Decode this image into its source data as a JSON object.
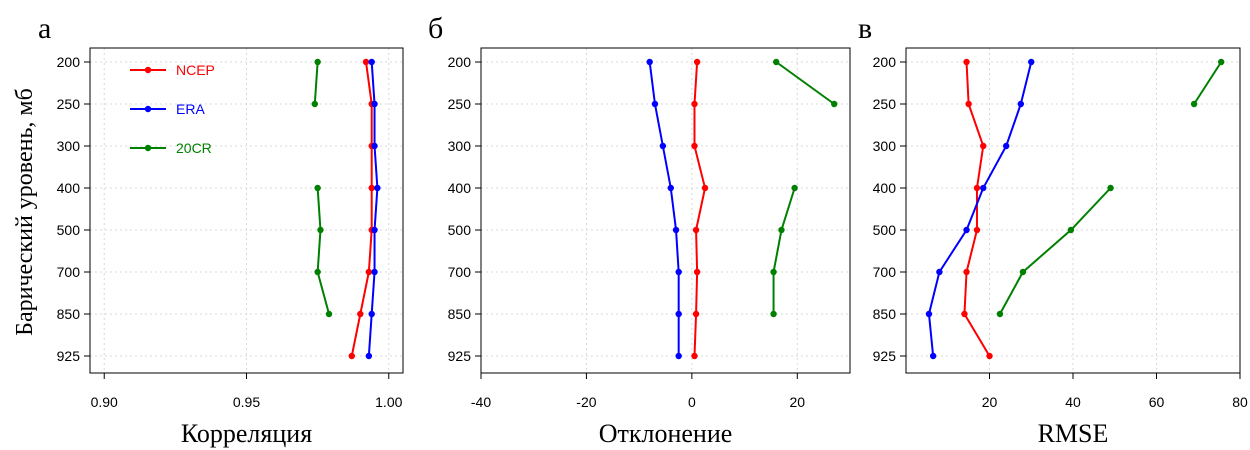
{
  "figure": {
    "ylabel": "Барический уровень, мб",
    "levels": [
      "200",
      "250",
      "300",
      "400",
      "500",
      "700",
      "850",
      "925"
    ]
  },
  "chart_data": [
    {
      "type": "line",
      "panel_label": "а",
      "xlabel": "Корреляция",
      "ylabel": "Барический уровень, мб",
      "xlim": [
        0.895,
        1.005
      ],
      "xticks": [
        "0.90",
        "0.95",
        "1.00"
      ],
      "xtick_values": [
        0.9,
        0.95,
        1.0
      ],
      "categories": [
        "200",
        "250",
        "300",
        "400",
        "500",
        "700",
        "850",
        "925"
      ],
      "grid": true,
      "legend": "top-left",
      "series": [
        {
          "name": "NCEP",
          "color": "#ff0000",
          "values": [
            0.992,
            0.994,
            0.994,
            0.994,
            0.994,
            0.993,
            0.99,
            0.987
          ]
        },
        {
          "name": "ERA",
          "color": "#0000ff",
          "values": [
            0.994,
            0.995,
            0.995,
            0.996,
            0.995,
            0.995,
            0.994,
            0.993
          ]
        },
        {
          "name": "20CR",
          "color": "#008000",
          "values": [
            0.975,
            0.974,
            null,
            0.975,
            0.976,
            0.975,
            0.979,
            null
          ]
        }
      ]
    },
    {
      "type": "line",
      "panel_label": "б",
      "xlabel": "Отклонение",
      "xlim": [
        -40,
        30
      ],
      "xticks": [
        "-40",
        "-20",
        "0",
        "20"
      ],
      "xtick_values": [
        -40,
        -20,
        0,
        20
      ],
      "categories": [
        "200",
        "250",
        "300",
        "400",
        "500",
        "700",
        "850",
        "925"
      ],
      "grid": true,
      "series": [
        {
          "name": "NCEP",
          "color": "#ff0000",
          "values": [
            1,
            0.5,
            0.5,
            2.5,
            0.8,
            1,
            0.8,
            0.5
          ]
        },
        {
          "name": "ERA",
          "color": "#0000ff",
          "values": [
            -8,
            -7,
            -5.5,
            -4,
            -3,
            -2.5,
            -2.5,
            -2.5
          ]
        },
        {
          "name": "20CR",
          "color": "#008000",
          "values": [
            16,
            27,
            null,
            19.5,
            17,
            15.5,
            15.5,
            null
          ]
        }
      ]
    },
    {
      "type": "line",
      "panel_label": "в",
      "xlabel": "RMSE",
      "xlim": [
        0,
        80
      ],
      "xticks": [
        "20",
        "40",
        "60",
        "80"
      ],
      "xtick_values": [
        20,
        40,
        60,
        80
      ],
      "categories": [
        "200",
        "250",
        "300",
        "400",
        "500",
        "700",
        "850",
        "925"
      ],
      "grid": true,
      "series": [
        {
          "name": "NCEP",
          "color": "#ff0000",
          "values": [
            14.5,
            15,
            18.5,
            17,
            17,
            14.5,
            14,
            20
          ]
        },
        {
          "name": "ERA",
          "color": "#0000ff",
          "values": [
            30,
            27.5,
            24,
            18.5,
            14.5,
            8,
            5.5,
            6.5
          ]
        },
        {
          "name": "20CR",
          "color": "#008000",
          "values": [
            75.5,
            69,
            null,
            49,
            39.5,
            28,
            22.5,
            null
          ]
        }
      ]
    }
  ]
}
